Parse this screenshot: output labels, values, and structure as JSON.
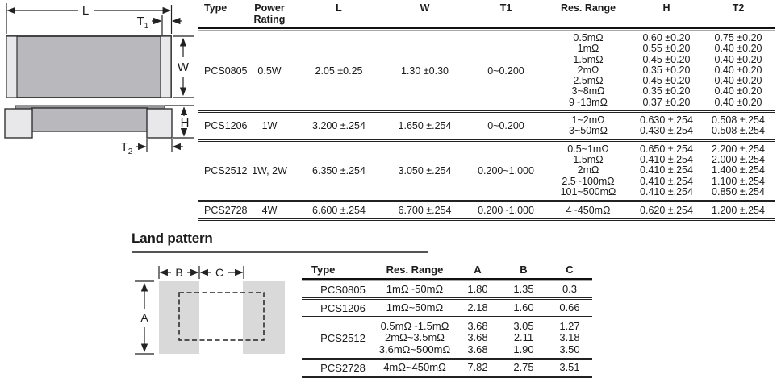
{
  "dimension_diagram": {
    "top_view": {
      "length_label": "L",
      "t1_label": "T",
      "t1_subscript": "1",
      "width_label": "W"
    },
    "side_view": {
      "height_label": "H",
      "t2_label": "T",
      "t2_subscript": "2"
    },
    "colors": {
      "body": "#b9b9bd",
      "termination": "#e8e8ea",
      "element_strip": "#97979b",
      "outline": "#333333"
    }
  },
  "spec_table": {
    "headers": [
      "Type",
      "Power Rating",
      "L",
      "W",
      "T1",
      "Res. Range",
      "H",
      "T2"
    ],
    "groups": [
      {
        "type": "PCS0805",
        "power": "0.5W",
        "l": "2.05 ±0.25",
        "w": "1.30 ±0.30",
        "t1": "0~0.200",
        "rows": [
          {
            "res": "0.5mΩ",
            "h": "0.60 ±0.20",
            "t2": "0.75 ±0.20"
          },
          {
            "res": "1mΩ",
            "h": "0.55 ±0.20",
            "t2": "0.40 ±0.20"
          },
          {
            "res": "1.5mΩ",
            "h": "0.45 ±0.20",
            "t2": "0.40 ±0.20"
          },
          {
            "res": "2mΩ",
            "h": "0.35 ±0.20",
            "t2": "0.40 ±0.20"
          },
          {
            "res": "2.5mΩ",
            "h": "0.45 ±0.20",
            "t2": "0.40 ±0.20"
          },
          {
            "res": "3~8mΩ",
            "h": "0.35 ±0.20",
            "t2": "0.40 ±0.20"
          },
          {
            "res": "9~13mΩ",
            "h": "0.37 ±0.20",
            "t2": "0.40 ±0.20"
          }
        ]
      },
      {
        "type": "PCS1206",
        "power": "1W",
        "l": "3.200 ±.254",
        "w": "1.650 ±.254",
        "t1": "0~0.200",
        "rows": [
          {
            "res": "1~2mΩ",
            "h": "0.630 ±.254",
            "t2": "0.508 ±.254"
          },
          {
            "res": "3~50mΩ",
            "h": "0.430 ±.254",
            "t2": "0.508 ±.254"
          }
        ]
      },
      {
        "type": "PCS2512",
        "power": "1W, 2W",
        "l": "6.350 ±.254",
        "w": "3.050 ±.254",
        "t1": "0.200~1.000",
        "rows": [
          {
            "res": "0.5~1mΩ",
            "h": "0.650 ±.254",
            "t2": "2.200 ±.254"
          },
          {
            "res": "1.5mΩ",
            "h": "0.410 ±.254",
            "t2": "2.000 ±.254"
          },
          {
            "res": "2mΩ",
            "h": "0.410 ±.254",
            "t2": "1.400 ±.254"
          },
          {
            "res": "2.5~100mΩ",
            "h": "0.410 ±.254",
            "t2": "1.100 ±.254"
          },
          {
            "res": "101~500mΩ",
            "h": "0.410 ±.254",
            "t2": "0.850 ±.254"
          }
        ]
      },
      {
        "type": "PCS2728",
        "power": "4W",
        "l": "6.600 ±.254",
        "w": "6.700 ±.254",
        "t1": "0.200~1.000",
        "rows": [
          {
            "res": "4~450mΩ",
            "h": "0.620 ±.254",
            "t2": "1.200 ±.254"
          }
        ]
      }
    ]
  },
  "land_pattern": {
    "heading": "Land pattern",
    "diagram_labels": {
      "a": "A",
      "b": "B",
      "c": "C"
    },
    "pad_color": "#d9d9d9",
    "table": {
      "headers": [
        "Type",
        "Res. Range",
        "A",
        "B",
        "C"
      ],
      "groups": [
        {
          "type": "PCS0805",
          "rows": [
            {
              "res": "1mΩ~50mΩ",
              "a": "1.80",
              "b": "1.35",
              "c": "0.3"
            }
          ]
        },
        {
          "type": "PCS1206",
          "rows": [
            {
              "res": "1mΩ~50mΩ",
              "a": "2.18",
              "b": "1.60",
              "c": "0.66"
            }
          ]
        },
        {
          "type": "PCS2512",
          "rows": [
            {
              "res": "0.5mΩ~1.5mΩ",
              "a": "3.68",
              "b": "3.05",
              "c": "1.27"
            },
            {
              "res": "2mΩ~3.5mΩ",
              "a": "3.68",
              "b": "2.11",
              "c": "3.18"
            },
            {
              "res": "3.6mΩ~500mΩ",
              "a": "3.68",
              "b": "1.90",
              "c": "3.50"
            }
          ]
        },
        {
          "type": "PCS2728",
          "rows": [
            {
              "res": "4mΩ~450mΩ",
              "a": "7.82",
              "b": "2.75",
              "c": "3.51"
            }
          ]
        }
      ]
    }
  }
}
